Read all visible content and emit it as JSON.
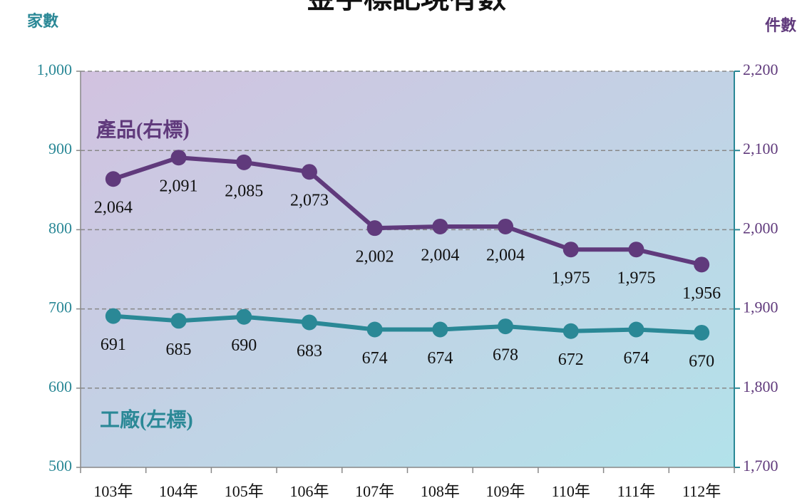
{
  "chart_data": {
    "type": "line",
    "title": "金字標記現有數",
    "y_label": "家數",
    "y2_label": "件數",
    "categories": [
      "103年",
      "104年",
      "105年",
      "106年",
      "107年",
      "108年",
      "109年",
      "110年",
      "111年",
      "112年"
    ],
    "series": [
      {
        "name": "產品(右標)",
        "color": "#603a7c",
        "axis": "y2",
        "values": [
          2064,
          2091,
          2085,
          2073,
          2002,
          2004,
          2004,
          1975,
          1975,
          1956
        ],
        "value_labels": [
          "2,064",
          "2,091",
          "2,085",
          "2,073",
          "2,002",
          "2,004",
          "2,004",
          "1,975",
          "1,975",
          "1,956"
        ]
      },
      {
        "name": "工廠(左標)",
        "color": "#2a8896",
        "values": [
          691,
          685,
          690,
          683,
          674,
          674,
          678,
          672,
          674,
          670
        ]
      }
    ],
    "ylim": [
      500,
      1000
    ],
    "yticks": [
      500,
      600,
      700,
      800,
      900,
      {
        "value": 1000,
        "label": "1,000"
      }
    ],
    "y2lim": [
      1700,
      2200
    ],
    "y2ticks": [
      {
        "value": 1700,
        "label": "1,700"
      },
      {
        "value": 1800,
        "label": "1,800"
      },
      {
        "value": 1900,
        "label": "1,900"
      },
      {
        "value": 2000,
        "label": "2,000"
      },
      {
        "value": 2100,
        "label": "2,100"
      },
      {
        "value": 2200,
        "label": "2,200"
      }
    ],
    "grid": true
  }
}
